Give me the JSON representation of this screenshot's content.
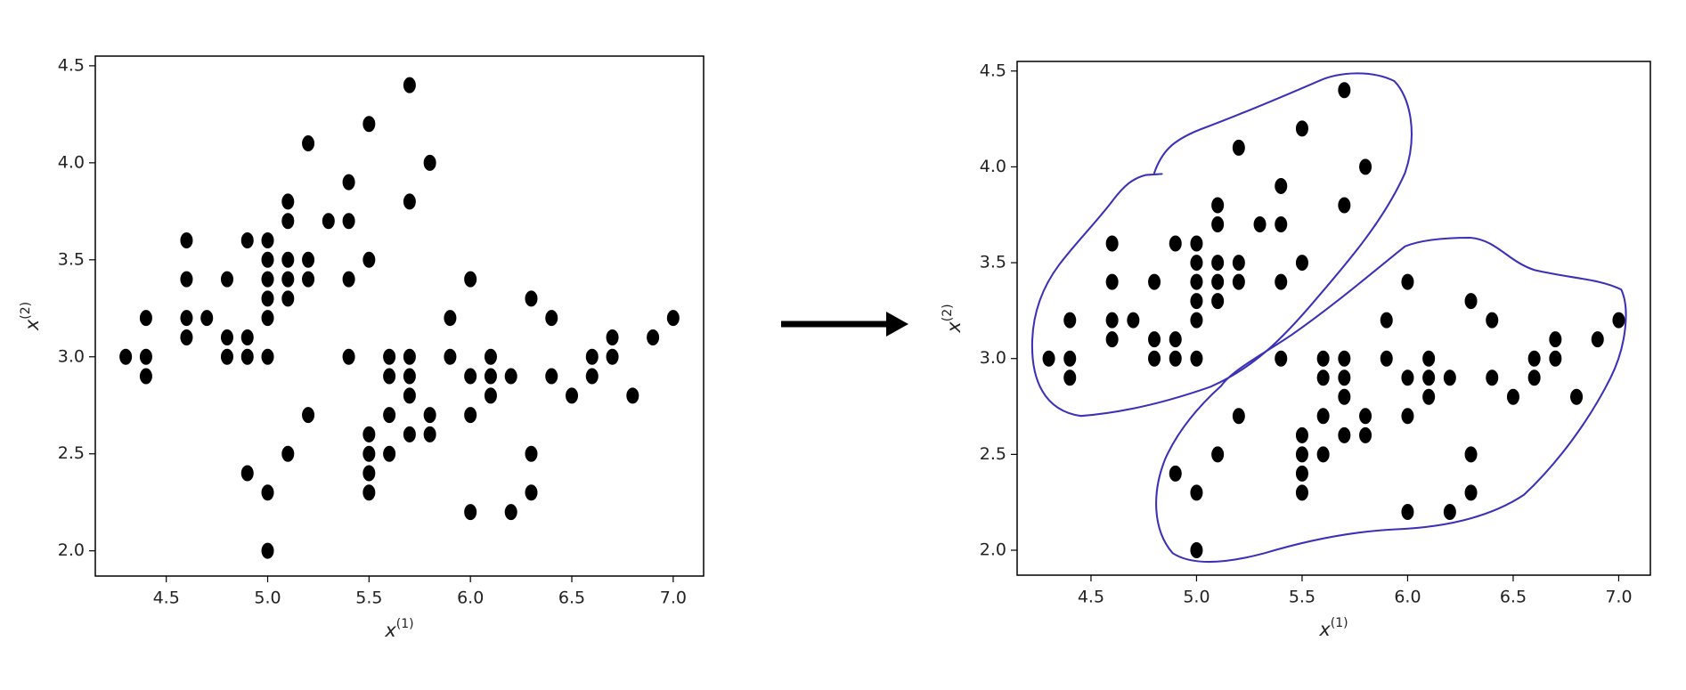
{
  "chart_data": [
    {
      "type": "scatter",
      "xlabel": "x",
      "xlabel_superscript": "(1)",
      "ylabel": "x",
      "ylabel_superscript": "(2)",
      "color": "#000000",
      "xlim": [
        4.15,
        7.15
      ],
      "ylim": [
        1.87,
        4.55
      ],
      "xticks": [
        4.5,
        {
          "value": 5,
          "label": "5.0"
        },
        5.5,
        {
          "value": 6,
          "label": "6.0"
        },
        6.5,
        {
          "value": 7,
          "label": "7.0"
        }
      ],
      "yticks": [
        {
          "value": 2,
          "label": "2.0"
        },
        2.5,
        {
          "value": 3,
          "label": "3.0"
        },
        3.5,
        {
          "value": 4,
          "label": "4.0"
        },
        4.5
      ],
      "x": [
        4.3,
        4.4,
        4.4,
        4.4,
        4.6,
        4.6,
        4.6,
        4.6,
        4.7,
        4.8,
        4.8,
        4.8,
        4.9,
        4.9,
        4.9,
        4.9,
        5.0,
        5.0,
        5.0,
        5.0,
        5.0,
        5.0,
        5.0,
        5.0,
        5.1,
        5.1,
        5.1,
        5.1,
        5.1,
        5.1,
        5.2,
        5.2,
        5.2,
        5.2,
        5.3,
        5.4,
        5.4,
        5.4,
        5.4,
        5.5,
        5.5,
        5.5,
        5.5,
        5.5,
        5.5,
        5.6,
        5.6,
        5.6,
        5.6,
        5.7,
        5.7,
        5.7,
        5.7,
        5.7,
        5.7,
        5.8,
        5.8,
        5.8,
        5.9,
        5.9,
        6.0,
        6.0,
        6.0,
        6.0,
        6.1,
        6.1,
        6.1,
        6.2,
        6.2,
        6.3,
        6.3,
        6.3,
        6.4,
        6.4,
        6.5,
        6.6,
        6.6,
        6.7,
        6.7,
        6.8,
        6.9,
        7.0
      ],
      "y": [
        3.0,
        3.2,
        3.0,
        2.9,
        3.6,
        3.4,
        3.2,
        3.1,
        3.2,
        3.4,
        3.1,
        3.0,
        3.6,
        3.1,
        3.0,
        2.4,
        3.6,
        3.5,
        3.4,
        3.3,
        3.2,
        3.0,
        2.3,
        2.0,
        3.8,
        3.7,
        3.5,
        3.4,
        3.3,
        2.5,
        4.1,
        3.5,
        3.4,
        2.7,
        3.7,
        3.9,
        3.7,
        3.4,
        3.0,
        4.2,
        3.5,
        2.6,
        2.5,
        2.4,
        2.3,
        3.0,
        2.9,
        2.7,
        2.5,
        4.4,
        3.8,
        3.0,
        2.9,
        2.8,
        2.6,
        4.0,
        2.7,
        2.6,
        3.2,
        3.0,
        3.4,
        2.9,
        2.7,
        2.2,
        3.0,
        2.9,
        2.8,
        2.9,
        2.2,
        3.3,
        2.5,
        2.3,
        3.2,
        2.9,
        2.8,
        3.0,
        2.9,
        3.1,
        3.0,
        2.8,
        3.1,
        3.2
      ]
    },
    {
      "type": "scatter",
      "xlabel": "x",
      "xlabel_superscript": "(1)",
      "ylabel": "x",
      "ylabel_superscript": "(2)",
      "color": "#000000",
      "xlim": [
        4.15,
        7.15
      ],
      "ylim": [
        1.87,
        4.55
      ],
      "xticks": [
        4.5,
        {
          "value": 5,
          "label": "5.0"
        },
        5.5,
        {
          "value": 6,
          "label": "6.0"
        },
        6.5,
        {
          "value": 7,
          "label": "7.0"
        }
      ],
      "yticks": [
        {
          "value": 2,
          "label": "2.0"
        },
        2.5,
        {
          "value": 3,
          "label": "3.0"
        },
        3.5,
        {
          "value": 4,
          "label": "4.0"
        },
        4.5
      ],
      "x": [
        4.3,
        4.4,
        4.4,
        4.4,
        4.6,
        4.6,
        4.6,
        4.6,
        4.7,
        4.8,
        4.8,
        4.8,
        4.9,
        4.9,
        4.9,
        4.9,
        5.0,
        5.0,
        5.0,
        5.0,
        5.0,
        5.0,
        5.0,
        5.0,
        5.1,
        5.1,
        5.1,
        5.1,
        5.1,
        5.1,
        5.2,
        5.2,
        5.2,
        5.2,
        5.3,
        5.4,
        5.4,
        5.4,
        5.4,
        5.5,
        5.5,
        5.5,
        5.5,
        5.5,
        5.5,
        5.6,
        5.6,
        5.6,
        5.6,
        5.7,
        5.7,
        5.7,
        5.7,
        5.7,
        5.7,
        5.8,
        5.8,
        5.8,
        5.9,
        5.9,
        6.0,
        6.0,
        6.0,
        6.0,
        6.1,
        6.1,
        6.1,
        6.2,
        6.2,
        6.3,
        6.3,
        6.3,
        6.4,
        6.4,
        6.5,
        6.6,
        6.6,
        6.7,
        6.7,
        6.8,
        6.9,
        7.0
      ],
      "y": [
        3.0,
        3.2,
        3.0,
        2.9,
        3.6,
        3.4,
        3.2,
        3.1,
        3.2,
        3.4,
        3.1,
        3.0,
        3.6,
        3.1,
        3.0,
        2.4,
        3.6,
        3.5,
        3.4,
        3.3,
        3.2,
        3.0,
        2.3,
        2.0,
        3.8,
        3.7,
        3.5,
        3.4,
        3.3,
        2.5,
        4.1,
        3.5,
        3.4,
        2.7,
        3.7,
        3.9,
        3.7,
        3.4,
        3.0,
        4.2,
        3.5,
        2.6,
        2.5,
        2.4,
        2.3,
        3.0,
        2.9,
        2.7,
        2.5,
        4.4,
        3.8,
        3.0,
        2.9,
        2.8,
        2.6,
        4.0,
        2.7,
        2.6,
        3.2,
        3.0,
        3.4,
        2.9,
        2.7,
        2.2,
        3.0,
        2.9,
        2.8,
        2.9,
        2.2,
        3.3,
        2.5,
        2.3,
        3.2,
        2.9,
        2.8,
        3.0,
        2.9,
        3.1,
        3.0,
        2.8,
        3.1,
        3.2
      ]
    }
  ]
}
